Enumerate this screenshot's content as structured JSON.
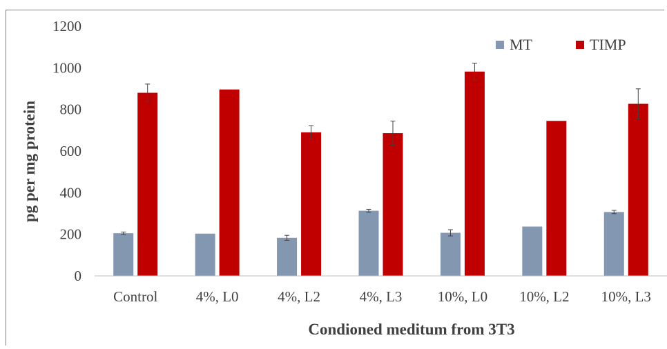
{
  "chart_data": {
    "type": "bar",
    "title": "",
    "xlabel": "Condioned meditum from 3T3",
    "ylabel": "pg per mg protein",
    "ylim": [
      0,
      1200
    ],
    "yticks": [
      0,
      200,
      400,
      600,
      800,
      1000,
      1200
    ],
    "categories": [
      "Control",
      "4%, L0",
      "4%, L2",
      "4%, L3",
      "10%, L0",
      "10%, L2",
      "10%, L3"
    ],
    "series": [
      {
        "name": "MT",
        "color": "#8497b0",
        "values": [
          205,
          203,
          183,
          313,
          207,
          237,
          307
        ],
        "errors": [
          6,
          0,
          12,
          7,
          15,
          0,
          8
        ]
      },
      {
        "name": "TIMP",
        "color": "#c00000",
        "values": [
          880,
          896,
          690,
          686,
          982,
          745,
          827
        ],
        "errors": [
          42,
          0,
          32,
          58,
          40,
          0,
          72
        ]
      }
    ],
    "grid": false,
    "legend_position": "top-right"
  }
}
